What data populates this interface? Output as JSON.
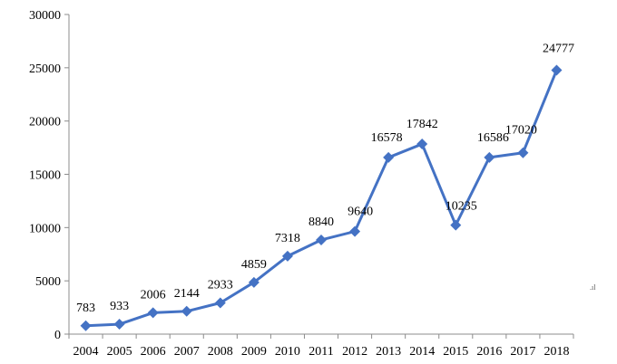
{
  "chart_data": {
    "type": "line",
    "title": "",
    "xlabel": "",
    "ylabel": "",
    "categories": [
      "2004",
      "2005",
      "2006",
      "2007",
      "2008",
      "2009",
      "2010",
      "2011",
      "2012",
      "2013",
      "2014",
      "2015",
      "2016",
      "2017",
      "2018"
    ],
    "series": [
      {
        "values": [
          783,
          933,
          2006,
          2144,
          2933,
          4859,
          7318,
          8840,
          9640,
          16578,
          17842,
          10235,
          16586,
          17020,
          24777
        ],
        "color": "#4472C4",
        "marker": "diamond"
      }
    ],
    "ylim": [
      0,
      30000
    ],
    "yticks": [
      0,
      5000,
      10000,
      15000,
      20000,
      25000,
      30000
    ],
    "data_labels": [
      "783",
      "933",
      "2006",
      "2144",
      "2933",
      "4859",
      "7318",
      "8840",
      "9640",
      "16578",
      "17842",
      "10235",
      "16586",
      "17020",
      "24777"
    ],
    "grid": false,
    "legend": "none",
    "corner_note": ".ıl"
  }
}
